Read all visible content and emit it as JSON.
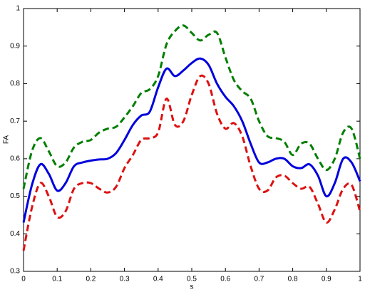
{
  "chart_data": {
    "type": "line",
    "xlabel": "s",
    "ylabel": "FA",
    "x": [
      0,
      0.025,
      0.05,
      0.075,
      0.1,
      0.125,
      0.15,
      0.175,
      0.2,
      0.225,
      0.25,
      0.275,
      0.3,
      0.325,
      0.35,
      0.375,
      0.4,
      0.425,
      0.45,
      0.475,
      0.5,
      0.525,
      0.55,
      0.575,
      0.6,
      0.625,
      0.65,
      0.675,
      0.7,
      0.725,
      0.75,
      0.775,
      0.8,
      0.825,
      0.85,
      0.875,
      0.9,
      0.925,
      0.95,
      0.975,
      1
    ],
    "series": [
      {
        "color": "#007f00",
        "linestyle": "dashed",
        "values": [
          0.52,
          0.62,
          0.655,
          0.62,
          0.58,
          0.59,
          0.63,
          0.645,
          0.65,
          0.67,
          0.68,
          0.685,
          0.71,
          0.74,
          0.775,
          0.785,
          0.82,
          0.905,
          0.94,
          0.955,
          0.935,
          0.915,
          0.93,
          0.935,
          0.87,
          0.81,
          0.78,
          0.76,
          0.7,
          0.66,
          0.655,
          0.645,
          0.61,
          0.64,
          0.64,
          0.6,
          0.57,
          0.6,
          0.67,
          0.68,
          0.6
        ]
      },
      {
        "color": "#dd1111",
        "linestyle": "dashed",
        "values": [
          0.355,
          0.47,
          0.535,
          0.5,
          0.445,
          0.46,
          0.52,
          0.535,
          0.535,
          0.52,
          0.51,
          0.525,
          0.575,
          0.61,
          0.65,
          0.655,
          0.67,
          0.76,
          0.69,
          0.7,
          0.77,
          0.82,
          0.8,
          0.72,
          0.68,
          0.695,
          0.66,
          0.58,
          0.52,
          0.515,
          0.55,
          0.555,
          0.535,
          0.52,
          0.525,
          0.48,
          0.43,
          0.465,
          0.52,
          0.53,
          0.46
        ]
      },
      {
        "color": "#0000dd",
        "linestyle": "solid",
        "values": [
          0.43,
          0.53,
          0.585,
          0.56,
          0.515,
          0.535,
          0.58,
          0.59,
          0.595,
          0.598,
          0.6,
          0.615,
          0.65,
          0.69,
          0.715,
          0.725,
          0.79,
          0.84,
          0.82,
          0.835,
          0.855,
          0.867,
          0.85,
          0.8,
          0.765,
          0.74,
          0.7,
          0.64,
          0.59,
          0.59,
          0.6,
          0.6,
          0.58,
          0.575,
          0.585,
          0.555,
          0.5,
          0.535,
          0.6,
          0.59,
          0.54
        ]
      }
    ],
    "xlim": [
      0,
      1
    ],
    "xticks": [
      0,
      0.1,
      0.2,
      0.3,
      0.4,
      0.5,
      0.6,
      0.7,
      0.8,
      0.9,
      1
    ],
    "ylim": [
      0.3,
      1
    ],
    "yticks": [
      0.3,
      0.4,
      0.5,
      0.6,
      0.7,
      0.8,
      0.9,
      1
    ],
    "grid": false
  }
}
